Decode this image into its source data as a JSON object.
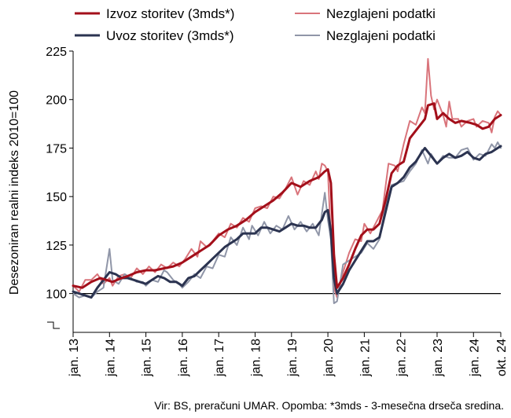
{
  "chart_data": {
    "type": "line",
    "ylabel": "Desezoniran realni indeks 2010=100",
    "ylim": [
      80,
      225
    ],
    "yticks": [
      100,
      125,
      150,
      175,
      200,
      225
    ],
    "xticks": [
      {
        "label": "jan. 13",
        "t": 0
      },
      {
        "label": "jan. 14",
        "t": 12
      },
      {
        "label": "jan. 15",
        "t": 24
      },
      {
        "label": "jan. 16",
        "t": 36
      },
      {
        "label": "jan. 17",
        "t": 48
      },
      {
        "label": "jan. 18",
        "t": 60
      },
      {
        "label": "jan. 19",
        "t": 72
      },
      {
        "label": "jan. 20",
        "t": 84
      },
      {
        "label": "jan. 21",
        "t": 96
      },
      {
        "label": "jan. 22",
        "t": 108
      },
      {
        "label": "jan. 23",
        "t": 120
      },
      {
        "label": "jan. 24",
        "t": 132
      },
      {
        "label": "okt. 24",
        "t": 141
      }
    ],
    "reference_line": 100,
    "legend": [
      {
        "label": "Izvoz storitev (3mds*)",
        "series": 0
      },
      {
        "label": "Nezglajeni podatki",
        "series": 1
      },
      {
        "label": "Uvoz storitev (3mds*)",
        "series": 2
      },
      {
        "label": "Nezglajeni podatki",
        "series": 3
      }
    ],
    "series": [
      {
        "name": "Izvoz storitev (3mds*)",
        "color": "#a30f1a",
        "width": 3,
        "points": [
          [
            0,
            104
          ],
          [
            3,
            103
          ],
          [
            6,
            106
          ],
          [
            9,
            108
          ],
          [
            11,
            107
          ],
          [
            13,
            106
          ],
          [
            16,
            108
          ],
          [
            18,
            109
          ],
          [
            21,
            111
          ],
          [
            24,
            112
          ],
          [
            27,
            112
          ],
          [
            30,
            113
          ],
          [
            33,
            114
          ],
          [
            36,
            116
          ],
          [
            39,
            119
          ],
          [
            42,
            122
          ],
          [
            45,
            125
          ],
          [
            48,
            130
          ],
          [
            51,
            133
          ],
          [
            54,
            135
          ],
          [
            57,
            138
          ],
          [
            60,
            142
          ],
          [
            63,
            145
          ],
          [
            66,
            148
          ],
          [
            69,
            152
          ],
          [
            72,
            157
          ],
          [
            75,
            155
          ],
          [
            78,
            158
          ],
          [
            81,
            160
          ],
          [
            83,
            163
          ],
          [
            84,
            164
          ],
          [
            85,
            157
          ],
          [
            86,
            120
          ],
          [
            87,
            103
          ],
          [
            89,
            108
          ],
          [
            91,
            115
          ],
          [
            93,
            123
          ],
          [
            95,
            130
          ],
          [
            97,
            133
          ],
          [
            99,
            133
          ],
          [
            101,
            136
          ],
          [
            103,
            148
          ],
          [
            105,
            162
          ],
          [
            107,
            166
          ],
          [
            109,
            168
          ],
          [
            111,
            180
          ],
          [
            114,
            186
          ],
          [
            116,
            190
          ],
          [
            117,
            197
          ],
          [
            119,
            198
          ],
          [
            120,
            190
          ],
          [
            122,
            193
          ],
          [
            124,
            190
          ],
          [
            126,
            188
          ],
          [
            128,
            189
          ],
          [
            131,
            188
          ],
          [
            133,
            187
          ],
          [
            135,
            185
          ],
          [
            137,
            186
          ],
          [
            139,
            190
          ],
          [
            141,
            192
          ]
        ]
      },
      {
        "name": "Nezglajeni podatki",
        "color": "#d9747b",
        "width": 2,
        "points": [
          [
            0,
            104
          ],
          [
            2,
            101
          ],
          [
            4,
            107
          ],
          [
            6,
            107
          ],
          [
            8,
            110
          ],
          [
            10,
            105
          ],
          [
            12,
            108
          ],
          [
            13,
            104
          ],
          [
            15,
            109
          ],
          [
            17,
            110
          ],
          [
            19,
            108
          ],
          [
            21,
            113
          ],
          [
            23,
            110
          ],
          [
            25,
            114
          ],
          [
            27,
            111
          ],
          [
            29,
            115
          ],
          [
            31,
            113
          ],
          [
            33,
            116
          ],
          [
            35,
            114
          ],
          [
            37,
            118
          ],
          [
            39,
            123
          ],
          [
            41,
            119
          ],
          [
            42,
            127
          ],
          [
            44,
            124
          ],
          [
            46,
            127
          ],
          [
            48,
            131
          ],
          [
            50,
            129
          ],
          [
            52,
            136
          ],
          [
            54,
            134
          ],
          [
            56,
            139
          ],
          [
            58,
            137
          ],
          [
            60,
            144
          ],
          [
            62,
            145
          ],
          [
            64,
            144
          ],
          [
            66,
            150
          ],
          [
            68,
            149
          ],
          [
            70,
            154
          ],
          [
            71,
            157
          ],
          [
            72,
            160
          ],
          [
            74,
            151
          ],
          [
            76,
            158
          ],
          [
            78,
            156
          ],
          [
            80,
            163
          ],
          [
            81,
            159
          ],
          [
            82,
            167
          ],
          [
            83,
            166
          ],
          [
            84,
            163
          ],
          [
            85,
            128
          ],
          [
            86,
            103
          ],
          [
            87,
            98
          ],
          [
            89,
            111
          ],
          [
            91,
            121
          ],
          [
            93,
            128
          ],
          [
            95,
            127
          ],
          [
            96,
            136
          ],
          [
            98,
            131
          ],
          [
            100,
            137
          ],
          [
            102,
            143
          ],
          [
            104,
            167
          ],
          [
            106,
            166
          ],
          [
            107,
            163
          ],
          [
            109,
            177
          ],
          [
            111,
            189
          ],
          [
            113,
            187
          ],
          [
            115,
            196
          ],
          [
            116,
            193
          ],
          [
            117,
            221
          ],
          [
            118,
            202
          ],
          [
            119,
            195
          ],
          [
            120,
            200
          ],
          [
            121,
            196
          ],
          [
            122,
            192
          ],
          [
            123,
            186
          ],
          [
            124,
            199
          ],
          [
            125,
            190
          ],
          [
            127,
            190
          ],
          [
            128,
            186
          ],
          [
            130,
            189
          ],
          [
            132,
            190
          ],
          [
            133,
            186
          ],
          [
            135,
            189
          ],
          [
            137,
            188
          ],
          [
            138,
            183
          ],
          [
            139,
            191
          ],
          [
            140,
            194
          ],
          [
            141,
            192
          ]
        ]
      },
      {
        "name": "Uvoz storitev (3mds*)",
        "color": "#2b3350",
        "width": 3,
        "points": [
          [
            0,
            101
          ],
          [
            2,
            100
          ],
          [
            4,
            99
          ],
          [
            6,
            98
          ],
          [
            8,
            103
          ],
          [
            10,
            107
          ],
          [
            12,
            111
          ],
          [
            14,
            110
          ],
          [
            16,
            108
          ],
          [
            18,
            108
          ],
          [
            20,
            107
          ],
          [
            22,
            106
          ],
          [
            24,
            105
          ],
          [
            26,
            107
          ],
          [
            28,
            109
          ],
          [
            30,
            108
          ],
          [
            32,
            106
          ],
          [
            34,
            106
          ],
          [
            36,
            104
          ],
          [
            38,
            108
          ],
          [
            40,
            109
          ],
          [
            42,
            112
          ],
          [
            44,
            115
          ],
          [
            46,
            118
          ],
          [
            48,
            121
          ],
          [
            50,
            124
          ],
          [
            52,
            126
          ],
          [
            54,
            128
          ],
          [
            56,
            131
          ],
          [
            58,
            131
          ],
          [
            60,
            131
          ],
          [
            62,
            134
          ],
          [
            64,
            134
          ],
          [
            66,
            133
          ],
          [
            68,
            132
          ],
          [
            70,
            134
          ],
          [
            72,
            136
          ],
          [
            74,
            135
          ],
          [
            76,
            135
          ],
          [
            78,
            134
          ],
          [
            80,
            134
          ],
          [
            82,
            138
          ],
          [
            83,
            142
          ],
          [
            84,
            143
          ],
          [
            85,
            132
          ],
          [
            86,
            108
          ],
          [
            87,
            100
          ],
          [
            89,
            105
          ],
          [
            91,
            112
          ],
          [
            93,
            117
          ],
          [
            95,
            122
          ],
          [
            97,
            127
          ],
          [
            99,
            127
          ],
          [
            101,
            129
          ],
          [
            103,
            142
          ],
          [
            105,
            155
          ],
          [
            107,
            157
          ],
          [
            109,
            160
          ],
          [
            111,
            165
          ],
          [
            113,
            168
          ],
          [
            115,
            173
          ],
          [
            116,
            175
          ],
          [
            118,
            171
          ],
          [
            120,
            167
          ],
          [
            122,
            170
          ],
          [
            124,
            172
          ],
          [
            126,
            170
          ],
          [
            128,
            171
          ],
          [
            130,
            173
          ],
          [
            132,
            170
          ],
          [
            134,
            169
          ],
          [
            136,
            172
          ],
          [
            138,
            173
          ],
          [
            140,
            175
          ],
          [
            141,
            176
          ]
        ]
      },
      {
        "name": "Nezglajeni podatki",
        "color": "#9096a8",
        "width": 2,
        "points": [
          [
            0,
            100
          ],
          [
            2,
            98
          ],
          [
            4,
            99
          ],
          [
            6,
            98
          ],
          [
            8,
            101
          ],
          [
            10,
            103
          ],
          [
            12,
            123
          ],
          [
            13,
            107
          ],
          [
            15,
            105
          ],
          [
            17,
            110
          ],
          [
            19,
            108
          ],
          [
            21,
            106
          ],
          [
            23,
            106
          ],
          [
            24,
            104
          ],
          [
            26,
            107
          ],
          [
            28,
            106
          ],
          [
            30,
            112
          ],
          [
            31,
            111
          ],
          [
            33,
            107
          ],
          [
            35,
            105
          ],
          [
            36,
            103
          ],
          [
            38,
            106
          ],
          [
            40,
            110
          ],
          [
            42,
            108
          ],
          [
            44,
            114
          ],
          [
            46,
            113
          ],
          [
            48,
            120
          ],
          [
            50,
            119
          ],
          [
            52,
            129
          ],
          [
            54,
            125
          ],
          [
            56,
            134
          ],
          [
            58,
            128
          ],
          [
            59,
            135
          ],
          [
            61,
            130
          ],
          [
            63,
            137
          ],
          [
            65,
            131
          ],
          [
            67,
            135
          ],
          [
            69,
            133
          ],
          [
            71,
            140
          ],
          [
            73,
            133
          ],
          [
            75,
            137
          ],
          [
            77,
            132
          ],
          [
            79,
            136
          ],
          [
            81,
            130
          ],
          [
            83,
            152
          ],
          [
            84,
            138
          ],
          [
            85,
            128
          ],
          [
            86,
            95
          ],
          [
            87,
            96
          ],
          [
            89,
            115
          ],
          [
            91,
            117
          ],
          [
            93,
            119
          ],
          [
            95,
            121
          ],
          [
            97,
            126
          ],
          [
            99,
            123
          ],
          [
            101,
            128
          ],
          [
            103,
            145
          ],
          [
            105,
            156
          ],
          [
            107,
            157
          ],
          [
            109,
            158
          ],
          [
            111,
            163
          ],
          [
            113,
            167
          ],
          [
            115,
            174
          ],
          [
            117,
            167
          ],
          [
            118,
            172
          ],
          [
            120,
            167
          ],
          [
            122,
            171
          ],
          [
            124,
            170
          ],
          [
            126,
            170
          ],
          [
            128,
            174
          ],
          [
            130,
            175
          ],
          [
            132,
            169
          ],
          [
            134,
            172
          ],
          [
            136,
            171
          ],
          [
            138,
            177
          ],
          [
            139,
            175
          ],
          [
            140,
            178
          ],
          [
            141,
            175
          ]
        ]
      }
    ]
  },
  "source_note": "Vir: BS, preračuni UMAR. Opomba: *3mds - 3-mesečna drseča sredina."
}
